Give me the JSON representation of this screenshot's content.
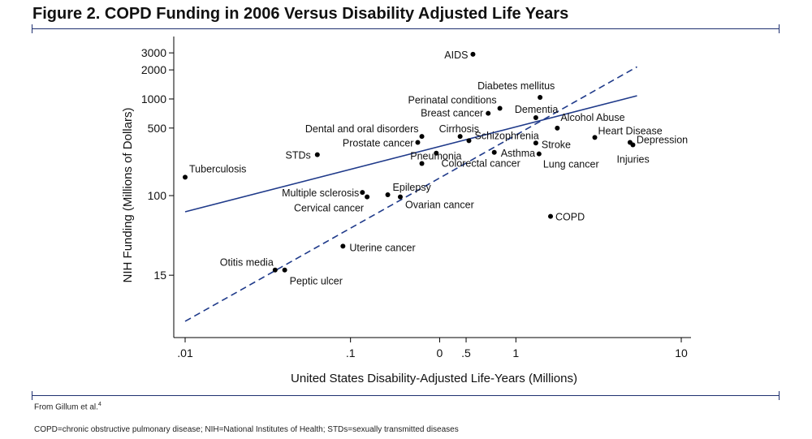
{
  "figure": {
    "title": "Figure 2. COPD Funding in 2006 Versus Disability Adjusted Life Years",
    "source_text": "From Gillum et al.",
    "source_ref": "4",
    "footnote": "COPD=chronic obstructive pulmonary disease; NIH=National Institutes of Health; STDs=sexually transmitted diseases"
  },
  "colors": {
    "rule": "#1f3070",
    "regression_solid": "#1f3a8a",
    "regression_dashed": "#1f3a8a",
    "points": "#000000",
    "axis": "#000000"
  },
  "chart_data": {
    "type": "scatter",
    "title": "",
    "xlabel": "United States Disability-Adjusted Life-Years (Millions)",
    "ylabel": "NIH Funding (Millions of Dollars)",
    "x_scale": "log",
    "y_scale": "log",
    "xlim": [
      0.01,
      10
    ],
    "ylim": [
      4.2,
      4100
    ],
    "x_ticks": [
      {
        "value": 0.01,
        "label": ".01"
      },
      {
        "value": 0.1,
        "label": ".1"
      },
      {
        "value": 0.346,
        "label": "0"
      },
      {
        "value": 0.5,
        "label": ".5"
      },
      {
        "value": 1,
        "label": "1"
      },
      {
        "value": 10,
        "label": "10"
      }
    ],
    "y_ticks": [
      {
        "value": 15,
        "label": "15"
      },
      {
        "value": 100,
        "label": "100"
      },
      {
        "value": 500,
        "label": "500"
      },
      {
        "value": 1000,
        "label": "1000"
      },
      {
        "value": 2000,
        "label": "2000"
      },
      {
        "value": 3000,
        "label": "3000"
      }
    ],
    "points": [
      {
        "label": "AIDS",
        "x": 0.55,
        "y": 2900,
        "anchor": "end"
      },
      {
        "label": "Diabetes mellitus",
        "x": 1.4,
        "y": 1040,
        "anchor": "start"
      },
      {
        "label": "Perinatal conditions",
        "x": 0.8,
        "y": 800,
        "anchor": "end"
      },
      {
        "label": "Breast cancer",
        "x": 0.68,
        "y": 710,
        "anchor": "end"
      },
      {
        "label": "Dementia",
        "x": 1.32,
        "y": 640,
        "anchor": "start"
      },
      {
        "label": "Alcohol Abuse",
        "x": 1.78,
        "y": 500,
        "anchor": "start"
      },
      {
        "label": "Dental and oral disorders",
        "x": 0.27,
        "y": 410,
        "anchor": "end"
      },
      {
        "label": "Cirrhosis",
        "x": 0.46,
        "y": 410,
        "anchor": "start"
      },
      {
        "label": "Heart Disease",
        "x": 3.0,
        "y": 400,
        "anchor": "start"
      },
      {
        "label": "Schizophrenia",
        "x": 0.52,
        "y": 370,
        "anchor": "start"
      },
      {
        "label": "Prostate cancer",
        "x": 0.255,
        "y": 355,
        "anchor": "end"
      },
      {
        "label": "Depression",
        "x": 4.9,
        "y": 355,
        "anchor": "start"
      },
      {
        "label": "Stroke",
        "x": 1.32,
        "y": 350,
        "anchor": "start"
      },
      {
        "label": "Injuries",
        "x": 5.1,
        "y": 335,
        "anchor": "start"
      },
      {
        "label": "Asthma",
        "x": 0.74,
        "y": 280,
        "anchor": "start"
      },
      {
        "label": "Pneumonia",
        "x": 0.33,
        "y": 275,
        "anchor": "start"
      },
      {
        "label": "Lung cancer",
        "x": 1.38,
        "y": 270,
        "anchor": "start"
      },
      {
        "label": "STDs",
        "x": 0.063,
        "y": 265,
        "anchor": "end"
      },
      {
        "label": "Colorectal cancer",
        "x": 0.27,
        "y": 215,
        "anchor": "start"
      },
      {
        "label": "Tuberculosis",
        "x": 0.01,
        "y": 155,
        "anchor": "start"
      },
      {
        "label": "Multiple sclerosis",
        "x": 0.118,
        "y": 108,
        "anchor": "end"
      },
      {
        "label": "Epilepsy",
        "x": 0.168,
        "y": 102,
        "anchor": "start"
      },
      {
        "label": "Cervical cancer",
        "x": 0.126,
        "y": 97,
        "anchor": "end"
      },
      {
        "label": "Ovarian cancer",
        "x": 0.2,
        "y": 97,
        "anchor": "start"
      },
      {
        "label": "COPD",
        "x": 1.62,
        "y": 61,
        "anchor": "start"
      },
      {
        "label": "Uterine cancer",
        "x": 0.09,
        "y": 30,
        "anchor": "start"
      },
      {
        "label": "Otitis media",
        "x": 0.035,
        "y": 17,
        "anchor": "end"
      },
      {
        "label": "Peptic ulcer",
        "x": 0.04,
        "y": 17,
        "anchor": "start"
      }
    ],
    "series": [
      {
        "style": "solid",
        "x": [
          0.01,
          5.4
        ],
        "y": [
          68,
          1080
        ]
      },
      {
        "style": "dashed",
        "x": [
          0.01,
          5.4
        ],
        "y": [
          5.0,
          2150
        ]
      }
    ],
    "grid": false,
    "legend": "none"
  }
}
